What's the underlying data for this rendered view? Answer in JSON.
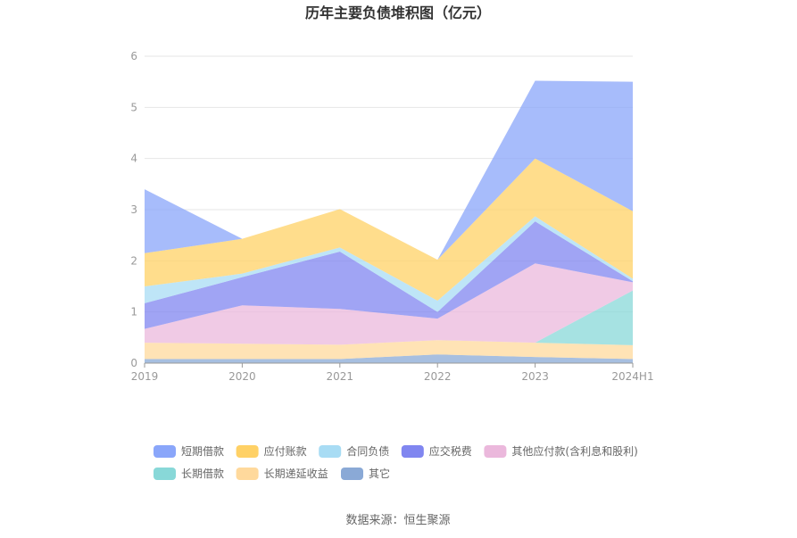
{
  "chart_data": {
    "type": "area",
    "stacked": true,
    "title": "历年主要负债堆积图（亿元）",
    "categories": [
      "2019",
      "2020",
      "2021",
      "2022",
      "2023",
      "2024H1"
    ],
    "yticks": [
      "0",
      "1",
      "2",
      "3",
      "4",
      "5",
      "6"
    ],
    "ylim": [
      0,
      6
    ],
    "grid": true,
    "legend_position": "bottom",
    "series": [
      {
        "name": "其它",
        "color": "#8aa9d6",
        "values": [
          0.08,
          0.08,
          0.08,
          0.17,
          0.12,
          0.08
        ]
      },
      {
        "name": "长期递延收益",
        "color": "#ffd99c",
        "values": [
          0.32,
          0.3,
          0.28,
          0.28,
          0.28,
          0.27
        ]
      },
      {
        "name": "长期借款",
        "color": "#88d8d8",
        "values": [
          0,
          0,
          0,
          0,
          0,
          1.07
        ]
      },
      {
        "name": "其他应付款(含利息和股利)",
        "color": "#ebb8dc",
        "values": [
          0.27,
          0.75,
          0.7,
          0.42,
          1.55,
          0.16
        ]
      },
      {
        "name": "应交税费",
        "color": "#8086f0",
        "values": [
          0.5,
          0.55,
          1.12,
          0.13,
          0.82,
          0.02
        ]
      },
      {
        "name": "合同负债",
        "color": "#a8dcf4",
        "values": [
          0.33,
          0.07,
          0.08,
          0.22,
          0.1,
          0.05
        ]
      },
      {
        "name": "应付账款",
        "color": "#ffd166",
        "values": [
          0.65,
          0.68,
          0.75,
          0.8,
          1.13,
          1.32
        ]
      },
      {
        "name": "短期借款",
        "color": "#8aa6fa",
        "values": [
          1.25,
          0,
          0,
          0,
          1.52,
          2.53
        ]
      }
    ],
    "legend_order": [
      "短期借款",
      "应付账款",
      "合同负债",
      "应交税费",
      "其他应付款(含利息和股利)",
      "长期借款",
      "长期递延收益",
      "其它"
    ]
  },
  "source_text": "数据来源：恒生聚源"
}
